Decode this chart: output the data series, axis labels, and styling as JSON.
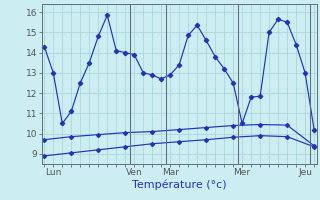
{
  "bg_color": "#cceef2",
  "line_color": "#2233bb",
  "grid_color": "#aad8dc",
  "divider_color": "#607080",
  "xlabel": "Température (°c)",
  "xlabel_color": "#2233bb",
  "yticks": [
    9,
    10,
    11,
    12,
    13,
    14,
    15,
    16
  ],
  "ylim": [
    8.5,
    16.4
  ],
  "xlim": [
    -0.3,
    30.3
  ],
  "xtick_labels": [
    "Lun",
    "Ven",
    "Mar",
    "Mer",
    "Jeu"
  ],
  "xtick_positions": [
    1,
    10,
    14,
    22,
    29
  ],
  "day_dividers": [
    9.5,
    13.5,
    21.5,
    29.5
  ],
  "main_x": [
    0,
    1,
    2,
    3,
    4,
    5,
    6,
    7,
    8,
    9,
    10,
    11,
    12,
    13,
    14,
    15,
    16,
    17,
    18,
    19,
    20,
    21,
    22,
    23,
    24,
    25,
    26,
    27,
    28,
    29,
    30
  ],
  "main_y": [
    14.3,
    13.0,
    10.5,
    11.1,
    12.5,
    13.5,
    14.8,
    15.85,
    14.1,
    14.0,
    13.9,
    13.0,
    12.9,
    12.7,
    12.9,
    13.4,
    14.85,
    15.35,
    14.6,
    13.8,
    13.2,
    12.5,
    10.5,
    11.8,
    11.85,
    15.0,
    15.65,
    15.5,
    14.4,
    13.0,
    10.2
  ],
  "flat1_x": [
    0,
    3,
    6,
    9,
    12,
    15,
    18,
    21,
    24,
    27,
    30
  ],
  "flat1_y": [
    9.7,
    9.85,
    9.95,
    10.05,
    10.1,
    10.2,
    10.3,
    10.4,
    10.45,
    10.42,
    9.4
  ],
  "flat2_x": [
    0,
    3,
    6,
    9,
    12,
    15,
    18,
    21,
    24,
    27,
    30
  ],
  "flat2_y": [
    8.9,
    9.05,
    9.2,
    9.35,
    9.5,
    9.6,
    9.7,
    9.82,
    9.9,
    9.85,
    9.35
  ]
}
